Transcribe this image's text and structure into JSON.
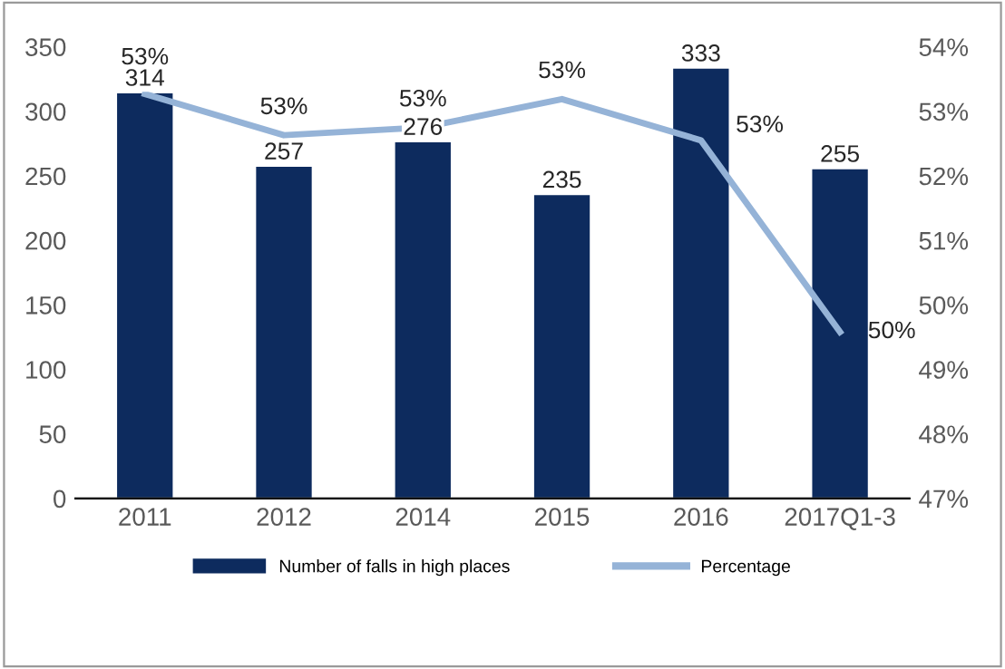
{
  "chart_data": {
    "type": "bar",
    "categories": [
      "2011",
      "2012",
      "2014",
      "2015",
      "2016",
      "2017Q1-3"
    ],
    "series": [
      {
        "name": "Number of falls in high places",
        "color": "#0d2b5e",
        "values": [
          314,
          257,
          276,
          235,
          333,
          255
        ],
        "value_labels": [
          "314",
          "257",
          "276",
          "235",
          "333",
          "255"
        ]
      },
      {
        "name": "Percentage",
        "type": "line",
        "axis": "y2",
        "color": "#95b3d7",
        "values": [
          53.27,
          52.63,
          52.75,
          53.19,
          52.55,
          49.58
        ],
        "value_labels": [
          "53%",
          "53%",
          "53%",
          "53%",
          "53%",
          "50%"
        ]
      }
    ],
    "ylim": [
      0,
      350
    ],
    "yticks": [
      0,
      50,
      100,
      150,
      200,
      250,
      300,
      350
    ],
    "y2lim": [
      47,
      54
    ],
    "y2ticks": [
      {
        "value": 47,
        "label": "47%"
      },
      {
        "value": 48,
        "label": "48%"
      },
      {
        "value": 49,
        "label": "49%"
      },
      {
        "value": 50,
        "label": "50%"
      },
      {
        "value": 51,
        "label": "51%"
      },
      {
        "value": 52,
        "label": "52%"
      },
      {
        "value": 53,
        "label": "53%"
      },
      {
        "value": 54,
        "label": "54%"
      }
    ],
    "grid": false,
    "legend": "bottom",
    "marker": "none",
    "line_style": "solid"
  }
}
